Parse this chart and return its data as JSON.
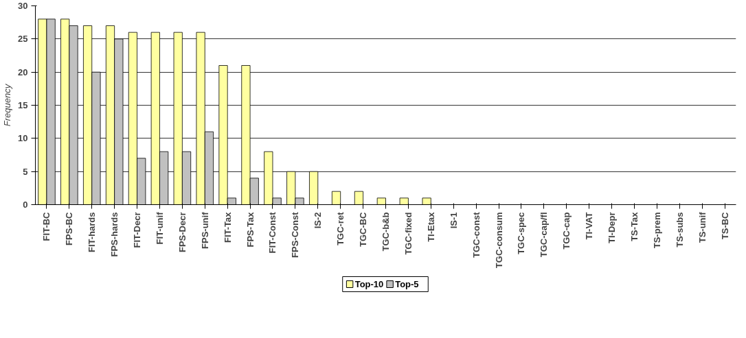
{
  "chart_data": {
    "type": "bar",
    "ylabel": "Frequency",
    "categories": [
      "FIT-BC",
      "FPS-BC",
      "FIT-hards",
      "FPS-hards",
      "FIT-Decr",
      "FIT-unif",
      "FPS-Decr",
      "FPS-unif",
      "FIT-Tax",
      "FPS-Tax",
      "FIT-Const",
      "FPS-Const",
      "IS-2",
      "TGC-ret",
      "TGC-BC",
      "TGC-b&b",
      "TGC-fixed",
      "TI-Etax",
      "IS-1",
      "TGC-const",
      "TGC-consum",
      "TGC-spec",
      "TGC-cap/fl",
      "TGC-cap",
      "TI-VAT",
      "TI-Depr",
      "TS-Tax",
      "TS-prem",
      "TS-subs",
      "TS-unif",
      "TS-BC"
    ],
    "series": [
      {
        "name": "Top-10",
        "color": "#ffffa0",
        "values": [
          28,
          28,
          27,
          27,
          26,
          26,
          26,
          26,
          21,
          21,
          8,
          5,
          5,
          2,
          2,
          1,
          1,
          1,
          0,
          0,
          0,
          0,
          0,
          0,
          0,
          0,
          0,
          0,
          0,
          0,
          0
        ]
      },
      {
        "name": "Top-5",
        "color": "#c0c0c0",
        "values": [
          28,
          27,
          20,
          25,
          7,
          8,
          8,
          11,
          1,
          4,
          1,
          1,
          0,
          0,
          0,
          0,
          0,
          0,
          0,
          0,
          0,
          0,
          0,
          0,
          0,
          0,
          0,
          0,
          0,
          0,
          0
        ]
      }
    ],
    "ylim": [
      0,
      30
    ],
    "yticks": [
      0,
      5,
      10,
      15,
      20,
      25,
      30
    ],
    "grid": "y",
    "legend": "bottom"
  }
}
